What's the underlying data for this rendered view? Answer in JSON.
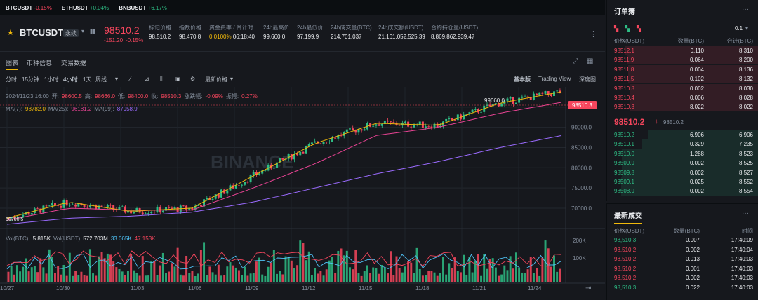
{
  "ticker": [
    {
      "symbol": "BTCUSDT",
      "change": "-0.15%",
      "dir": "down"
    },
    {
      "symbol": "ETHUSDT",
      "change": "+0.04%",
      "dir": "up"
    },
    {
      "symbol": "BNBUSDT",
      "change": "+6.17%",
      "dir": "up"
    }
  ],
  "header": {
    "symbol": "BTCUSDT",
    "badge": "永续",
    "price": "98510.2",
    "change": "-151.20",
    "change_pct": "-0.15%",
    "stats": [
      {
        "label": "标记价格",
        "value": "98,510.2"
      },
      {
        "label": "指数价格",
        "value": "98,470.8"
      },
      {
        "label": "资金费率 / 倒计时",
        "value": "0.0100%",
        "value2": "06:18:40"
      },
      {
        "label": "24h最高价",
        "value": "99,660.0"
      },
      {
        "label": "24h最低价",
        "value": "97,199.9"
      },
      {
        "label": "24h成交量(BTC)",
        "value": "214,701.037"
      },
      {
        "label": "24h成交额(USDT)",
        "value": "21,161,052,525.39"
      },
      {
        "label": "合约持仓量(USDT)",
        "value": "8,869,862,939.47"
      }
    ]
  },
  "tabs": [
    "图表",
    "币种信息",
    "交易数据"
  ],
  "toolbar": {
    "intervals": [
      "分时",
      "15分钟",
      "1小时",
      "4小时",
      "1天",
      "周线"
    ],
    "price_type": "最新价格",
    "views": [
      "基本版",
      "Trading View",
      "深度图"
    ]
  },
  "chart": {
    "ohlc_line": {
      "date": "2024/11/23 16:00",
      "o_label": "开:",
      "o": "98600.5",
      "h_label": "高:",
      "h": "98666.0",
      "l_label": "低:",
      "l": "98400.0",
      "c_label": "收:",
      "c": "98510.3",
      "chg_label": "涨跌幅:",
      "chg": "-0.09%",
      "amp_label": "振幅:",
      "amp": "0.27%"
    },
    "ma_line": {
      "ma7_label": "MA(7):",
      "ma7": "98782.0",
      "ma25_label": "MA(25):",
      "ma25": "96181.2",
      "ma99_label": "MA(99):",
      "ma99": "87958.9"
    },
    "vol_line": {
      "label": "Vol(BTC):",
      "btc": "5.815K",
      "usdt_label": "Vol(USDT)",
      "usdt": "572.703M",
      "v1": "33.065K",
      "v2": "47.153K"
    },
    "last_price_tag": "98510.3",
    "high_label": "99660.0",
    "low_label": "66760.5",
    "y_ticks": [
      "95000.0",
      "90000.0",
      "85000.0",
      "80000.0",
      "75000.0",
      "70000.0"
    ],
    "vol_ticks": [
      "200K",
      "100K"
    ],
    "x_ticks": [
      "10/27",
      "10/30",
      "11/03",
      "11/06",
      "11/09",
      "11/12",
      "11/15",
      "11/18",
      "11/21",
      "11/24"
    ],
    "watermark": "BINANCE"
  },
  "chart_data": {
    "type": "line",
    "x": [
      "10/27",
      "10/30",
      "11/03",
      "11/06",
      "11/09",
      "11/12",
      "11/15",
      "11/18",
      "11/21",
      "11/24"
    ],
    "series": [
      {
        "name": "MA(7)",
        "values": [
          67500,
          71500,
          69200,
          70000,
          78000,
          86000,
          91000,
          90500,
          96000,
          98782
        ]
      },
      {
        "name": "MA(25)",
        "values": [
          67000,
          70000,
          69500,
          69500,
          75000,
          81000,
          88000,
          90000,
          93500,
          96181
        ]
      },
      {
        "name": "MA(99)",
        "values": [
          66000,
          67500,
          68000,
          69000,
          71500,
          75000,
          78500,
          81500,
          85000,
          87959
        ]
      }
    ],
    "ylim": [
      66000,
      100000
    ],
    "grid": true
  },
  "orderbook": {
    "title": "订单簿",
    "tick": "0.1",
    "headers": [
      "价格(USDT)",
      "数量(BTC)",
      "合计(BTC)"
    ],
    "asks": [
      [
        "98512.1",
        "0.110",
        "8.310"
      ],
      [
        "98511.9",
        "0.064",
        "8.200"
      ],
      [
        "98511.8",
        "0.004",
        "8.136"
      ],
      [
        "98511.5",
        "0.102",
        "8.132"
      ],
      [
        "98510.8",
        "0.002",
        "8.030"
      ],
      [
        "98510.4",
        "0.006",
        "8.028"
      ],
      [
        "98510.3",
        "8.022",
        "8.022"
      ]
    ],
    "mid_price": "98510.2",
    "mid_mark": "98510.2",
    "bids": [
      [
        "98510.2",
        "6.906",
        "6.906"
      ],
      [
        "98510.1",
        "0.329",
        "7.235"
      ],
      [
        "98510.0",
        "1.288",
        "8.523"
      ],
      [
        "98509.9",
        "0.002",
        "8.525"
      ],
      [
        "98509.8",
        "0.002",
        "8.527"
      ],
      [
        "98509.1",
        "0.025",
        "8.552"
      ],
      [
        "98508.9",
        "0.002",
        "8.554"
      ]
    ]
  },
  "trades": {
    "title": "最新成交",
    "headers": [
      "价格(USDT)",
      "数量(BTC)",
      "时间"
    ],
    "rows": [
      [
        "98,510.3",
        "0.007",
        "17:40:09",
        "up"
      ],
      [
        "98,510.2",
        "0.002",
        "17:40:04",
        "down"
      ],
      [
        "98,510.2",
        "0.013",
        "17:40:03",
        "down"
      ],
      [
        "98,510.2",
        "0.001",
        "17:40:03",
        "down"
      ],
      [
        "98,510.2",
        "0.002",
        "17:40:03",
        "down"
      ],
      [
        "98,510.3",
        "0.022",
        "17:40:03",
        "up"
      ]
    ]
  }
}
